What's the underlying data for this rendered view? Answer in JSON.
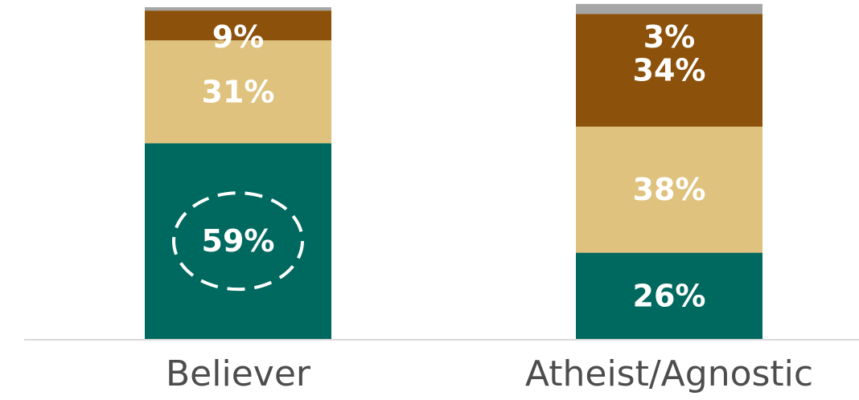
{
  "chart_data": {
    "type": "bar",
    "stacked": true,
    "categories": [
      "Believer",
      "Atheist/Agnostic"
    ],
    "series": [
      {
        "color": "#00695f",
        "values": [
          59,
          26
        ],
        "labels": [
          "59%",
          "26%"
        ]
      },
      {
        "color": "#dfc27d",
        "values": [
          31,
          38
        ],
        "labels": [
          "31%",
          "38%"
        ]
      },
      {
        "color": "#8c510a",
        "values": [
          9,
          34
        ],
        "labels": [
          "9%",
          "34%"
        ]
      },
      {
        "color": "#a6a6a6",
        "values": [
          1,
          3
        ],
        "labels": [
          "",
          "3%"
        ]
      }
    ],
    "ylim": [
      0,
      100
    ],
    "grid": false,
    "legend": "none",
    "highlight": {
      "category": "Believer",
      "series_index": 0,
      "style": "dashed-ellipse"
    },
    "baseline_color": "#d9d9d9"
  }
}
